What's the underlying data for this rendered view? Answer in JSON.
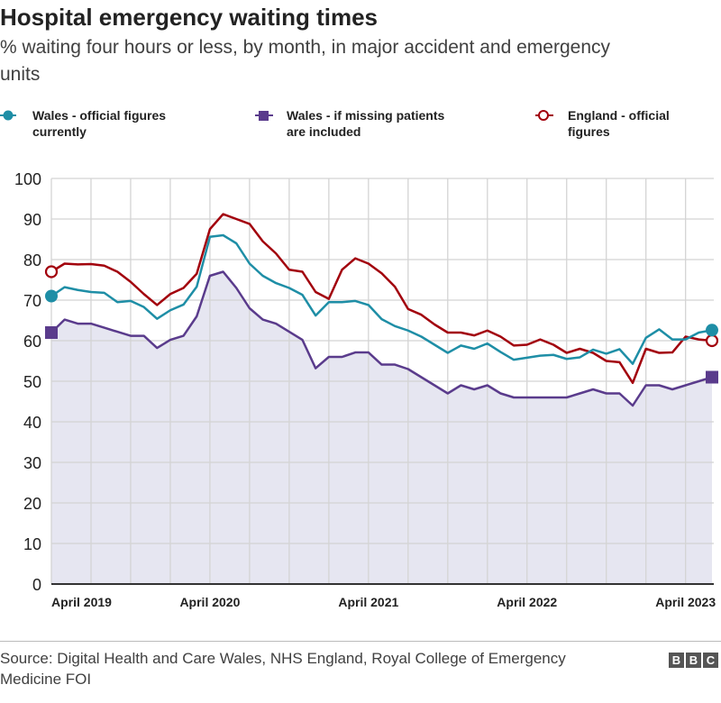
{
  "title": "Hospital emergency waiting times",
  "subtitle": "% waiting four hours or less, by month, in major accident and emergency units",
  "source": "Source: Digital Health and Care Wales, NHS England, Royal College of Emergency Medicine FOI",
  "logo": "BBC",
  "chart_data": {
    "type": "line",
    "title": "Hospital emergency waiting times",
    "ylim": [
      0,
      100
    ],
    "yticks": [
      0,
      10,
      20,
      30,
      40,
      50,
      60,
      70,
      80,
      90,
      100
    ],
    "grid": true,
    "legend_placement": "top",
    "x_start": "April 2019",
    "x_end": "June 2023",
    "x_interval": "month",
    "xtick_labels": [
      "April 2019",
      "April 2020",
      "April 2021",
      "April 2022",
      "April 2023"
    ],
    "series": [
      {
        "name": "Wales - official figures currently",
        "color": "#1e8ea6",
        "marker": "filled-circle",
        "values": [
          71,
          73.2,
          72.5,
          72,
          71.8,
          69.5,
          69.8,
          68.3,
          65.4,
          67.5,
          68.9,
          73.3,
          85.6,
          86,
          84,
          79,
          76,
          74.2,
          73,
          71.3,
          66.2,
          69.5,
          69.5,
          69.8,
          68.8,
          65.3,
          63.6,
          62.5,
          61,
          59,
          57,
          58.8,
          58,
          59.3,
          57.2,
          55.3,
          55.8,
          56.3,
          56.5,
          55.5,
          55.9,
          57.8,
          56.8,
          57.9,
          54.3,
          60.7,
          62.8,
          60.3,
          60.3,
          62,
          62.6
        ]
      },
      {
        "name": "Wales - if missing patients are included",
        "color": "#5a3b8c",
        "marker": "filled-square",
        "area_fill": "#e6e6f1",
        "values": [
          62,
          65.2,
          64.2,
          64.2,
          63.2,
          62.2,
          61.2,
          61.2,
          58.2,
          60.2,
          61.2,
          66,
          76,
          77,
          73,
          68,
          65.2,
          64.2,
          62.2,
          60.2,
          53.2,
          56,
          56,
          57.1,
          57.1,
          54.1,
          54.1,
          53,
          51,
          49,
          47,
          49,
          48,
          49,
          47,
          46,
          46,
          46,
          46,
          46,
          47,
          48,
          47,
          47,
          44,
          49,
          49,
          48,
          49,
          50,
          51
        ]
      },
      {
        "name": "England - official figures",
        "color": "#a2000c",
        "marker": "open-circle",
        "values": [
          77,
          79,
          78.8,
          78.9,
          78.5,
          77,
          74.5,
          71.5,
          68.8,
          71.5,
          73,
          76.5,
          87.5,
          91.2,
          90,
          88.8,
          84.5,
          81.5,
          77.5,
          77,
          72,
          70.3,
          77.5,
          80.3,
          79,
          76.6,
          73.3,
          67.8,
          66.4,
          64,
          62,
          62,
          61.3,
          62.5,
          61,
          58.8,
          59,
          60.3,
          59,
          57,
          58,
          57,
          55,
          54.7,
          49.6,
          58,
          57,
          57.1,
          61,
          60.3,
          60
        ]
      }
    ]
  }
}
